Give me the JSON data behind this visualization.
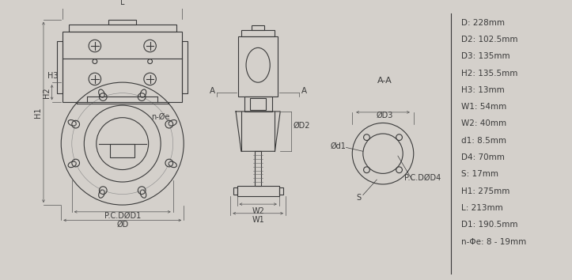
{
  "bg_color": "#d4d0cb",
  "line_color": "#3a3a3a",
  "dim_color": "#555555",
  "specs": [
    "D: 228mm",
    "D2: 102.5mm",
    "D3: 135mm",
    "H2: 135.5mm",
    "H3: 13mm",
    "W1: 54mm",
    "W2: 40mm",
    "d1: 8.5mm",
    "D4: 70mm",
    "S: 17mm",
    "H1: 275mm",
    "L: 213mm",
    "D1: 190.5mm",
    "n-Φe: 8 - 19mm"
  ],
  "font_size": 7.0,
  "lw": 0.8,
  "lw_thin": 0.4,
  "lw_dim": 0.5
}
